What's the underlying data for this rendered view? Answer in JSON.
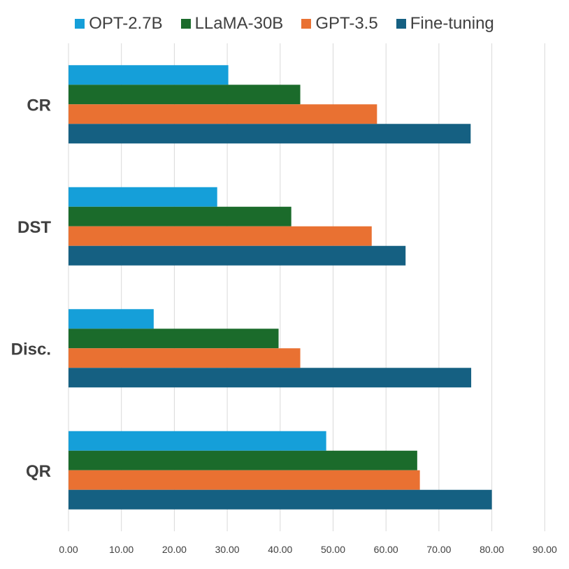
{
  "chart_data": {
    "type": "bar",
    "orientation": "horizontal",
    "categories": [
      "CR",
      "DST",
      "Disc.",
      "QR"
    ],
    "series": [
      {
        "name": "OPT-2.7B",
        "color": "#159fd9",
        "values": [
          30.2,
          28.1,
          16.1,
          48.7
        ]
      },
      {
        "name": "LLaMA-30B",
        "color": "#1b6b2b",
        "values": [
          43.8,
          42.1,
          39.7,
          65.9
        ]
      },
      {
        "name": "GPT-3.5",
        "color": "#e97132",
        "values": [
          58.3,
          57.3,
          43.8,
          66.4
        ]
      },
      {
        "name": "Fine-tuning",
        "color": "#156082",
        "values": [
          76.0,
          63.7,
          76.1,
          80.0
        ]
      }
    ],
    "xlim": [
      0,
      90
    ],
    "x_ticks": [
      "0.00",
      "10.00",
      "20.00",
      "30.00",
      "40.00",
      "50.00",
      "60.00",
      "70.00",
      "80.00",
      "90.00"
    ],
    "grid": true,
    "legend_position": "top"
  }
}
